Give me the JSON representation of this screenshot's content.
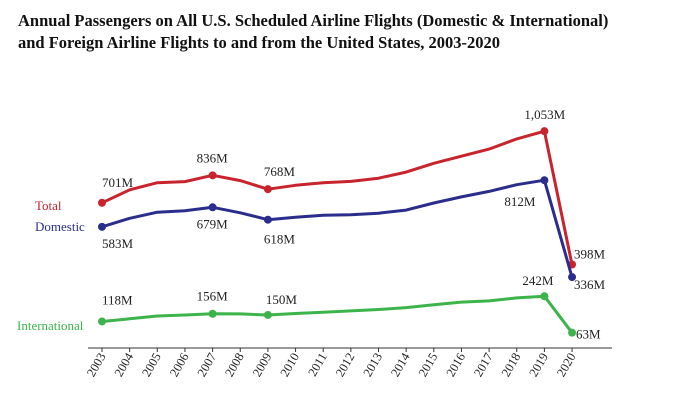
{
  "chart_data": {
    "type": "line",
    "title_line1": "Annual Passengers on All U.S. Scheduled Airline Flights (Domestic & International)",
    "title_line2": "and Foreign Airline Flights to and from the United States, 2003-2020",
    "xlabel": "",
    "ylabel": "",
    "units": "millions of passengers",
    "ylim": [
      0,
      1100
    ],
    "grid": false,
    "legend": "left inline series labels",
    "x": [
      "2003",
      "2004",
      "2005",
      "2006",
      "2007",
      "2008",
      "2009",
      "2010",
      "2011",
      "2012",
      "2013",
      "2014",
      "2015",
      "2016",
      "2017",
      "2018",
      "2019",
      "2020"
    ],
    "series": [
      {
        "name": "Total",
        "color": "#c8242e",
        "values": [
          701,
          765,
          800,
          805,
          836,
          810,
          768,
          787,
          800,
          806,
          822,
          852,
          895,
          930,
          965,
          1015,
          1053,
          398
        ],
        "labels": [
          {
            "index": 0,
            "text": "701M"
          },
          {
            "index": 4,
            "text": "836M"
          },
          {
            "index": 6,
            "text": "768M"
          },
          {
            "index": 16,
            "text": "1,053M"
          },
          {
            "index": 17,
            "text": "398M"
          }
        ]
      },
      {
        "name": "Domestic",
        "color": "#2b2d8c",
        "values": [
          583,
          625,
          655,
          662,
          679,
          652,
          618,
          630,
          640,
          642,
          650,
          665,
          700,
          730,
          757,
          790,
          812,
          336
        ],
        "labels": [
          {
            "index": 0,
            "text": "583M"
          },
          {
            "index": 4,
            "text": "679M"
          },
          {
            "index": 6,
            "text": "618M"
          },
          {
            "index": 16,
            "text": "812M"
          },
          {
            "index": 17,
            "text": "336M"
          }
        ]
      },
      {
        "name": "International",
        "color": "#3cb44b",
        "values": [
          118,
          131,
          145,
          150,
          156,
          155,
          150,
          157,
          163,
          170,
          177,
          186,
          200,
          213,
          219,
          234,
          242,
          63
        ],
        "labels": [
          {
            "index": 0,
            "text": "118M"
          },
          {
            "index": 4,
            "text": "156M"
          },
          {
            "index": 6,
            "text": "150M"
          },
          {
            "index": 16,
            "text": "242M"
          },
          {
            "index": 17,
            "text": "63M"
          }
        ]
      }
    ]
  }
}
